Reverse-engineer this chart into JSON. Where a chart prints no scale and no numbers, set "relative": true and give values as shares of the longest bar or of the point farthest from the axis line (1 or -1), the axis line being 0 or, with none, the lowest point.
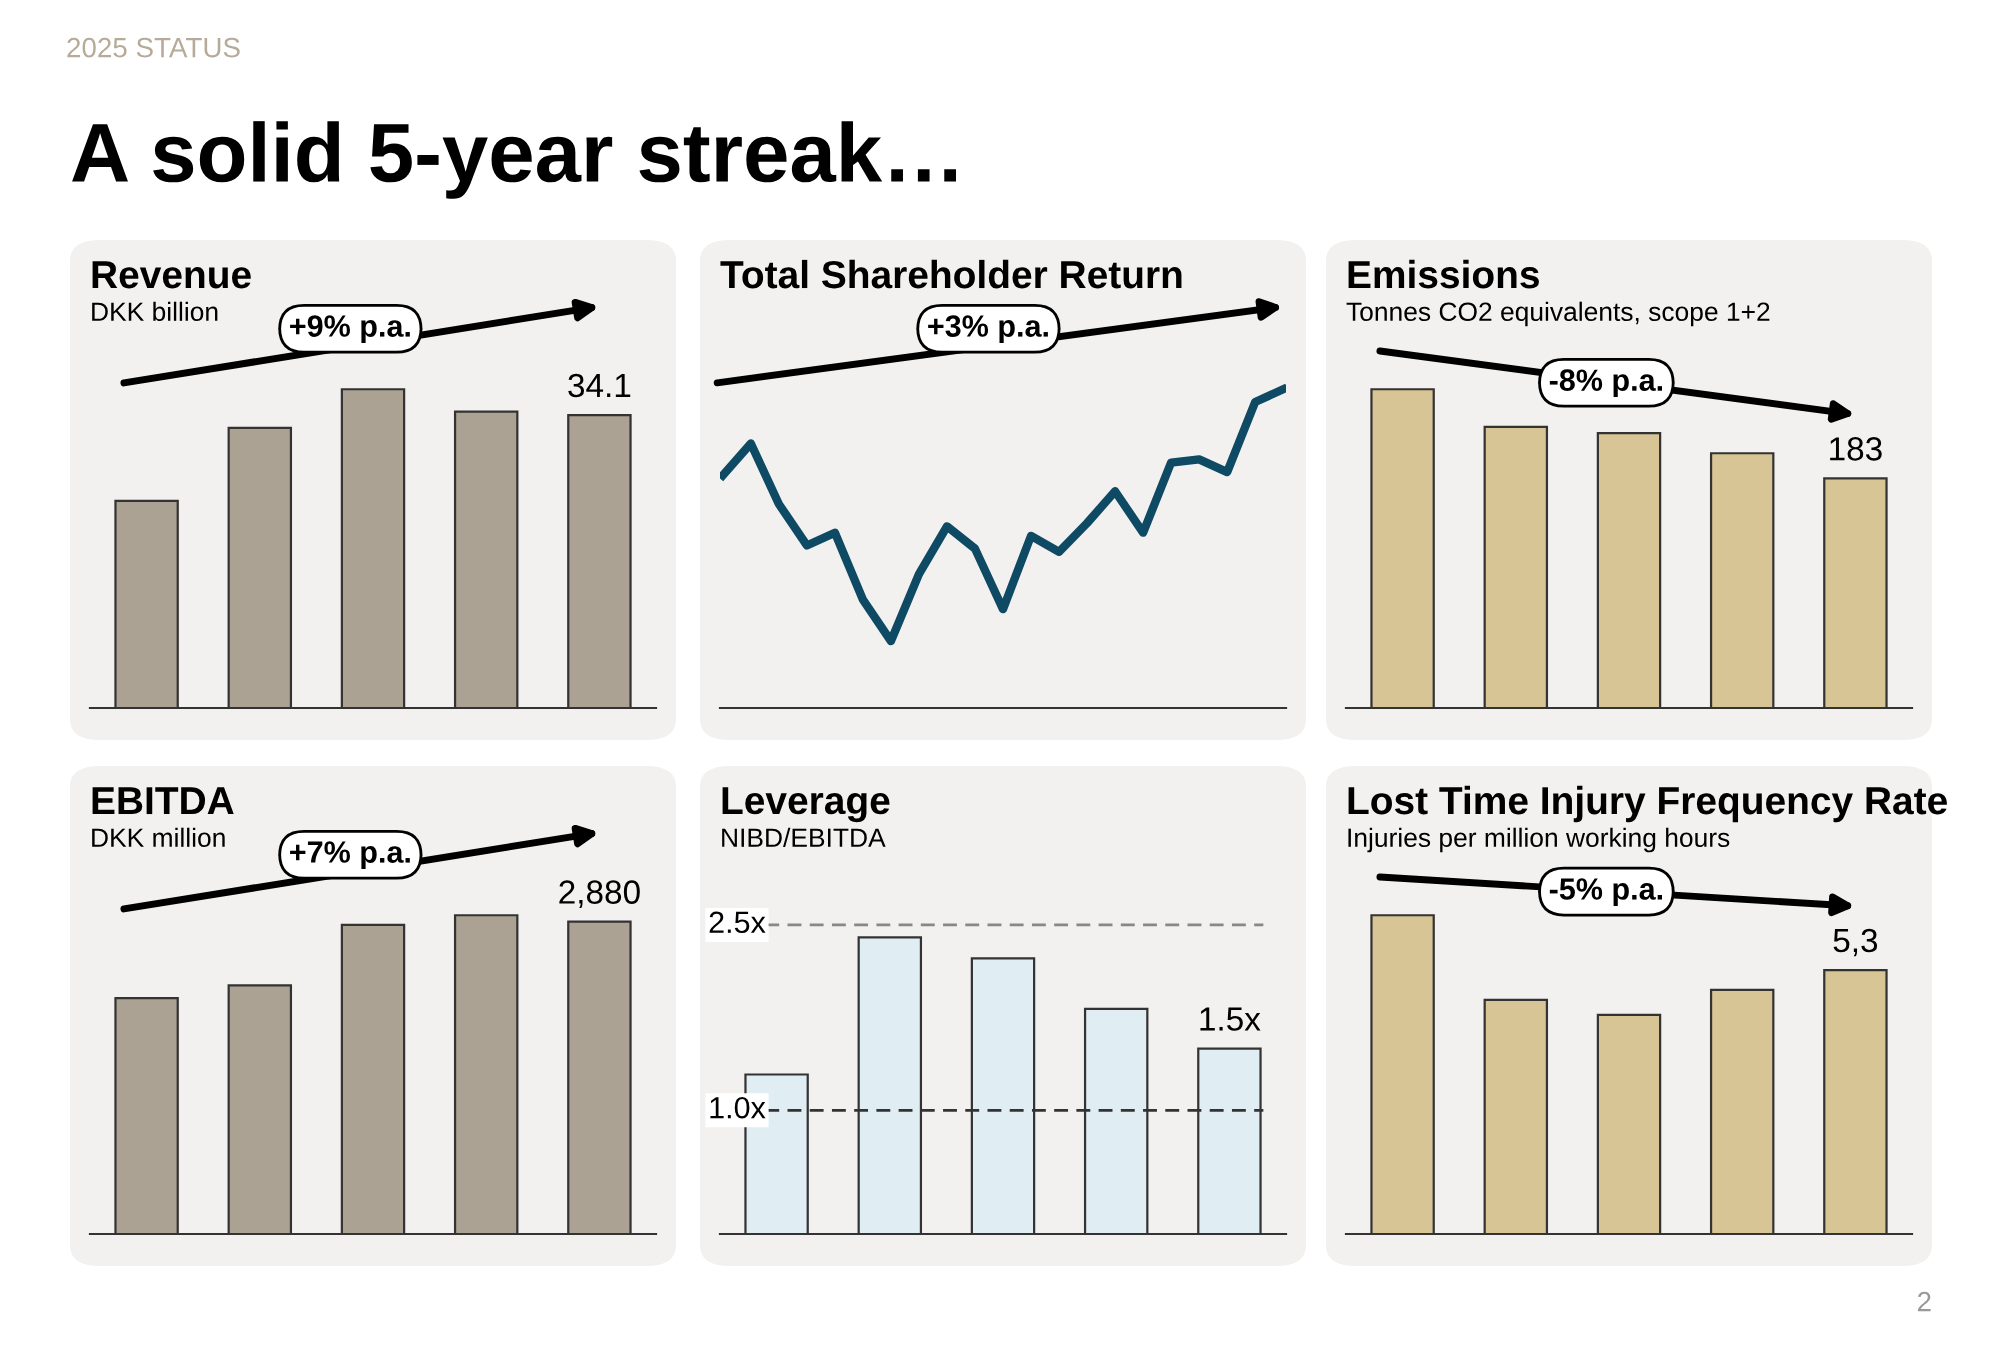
{
  "chart_data": [
    {
      "type": "other",
      "title": "A solid 5-year streak…",
      "annotations": [
        "2025 STATUS",
        "2"
      ]
    },
    {
      "type": "bar",
      "title": "Revenue",
      "subtitle": "DKK billion",
      "categories": [
        null,
        null,
        null,
        null,
        null
      ],
      "values": [
        24.1,
        32.6,
        37.1,
        34.5,
        34.1
      ],
      "color": "#aba293",
      "value_labels": [
        null,
        null,
        null,
        null,
        "34.1"
      ],
      "annotations": [
        "+9% p.a."
      ]
    },
    {
      "type": "line",
      "title": "Total Shareholder Return",
      "relative": true,
      "categories": [
        null,
        null,
        null,
        null,
        null,
        null,
        null,
        null,
        null,
        null,
        null,
        null,
        null,
        null,
        null,
        null,
        null,
        null,
        null,
        null,
        null
      ],
      "values": [
        0.73,
        0.83,
        0.64,
        0.51,
        0.55,
        0.34,
        0.21,
        0.42,
        0.57,
        0.5,
        0.31,
        0.54,
        0.49,
        0.58,
        0.68,
        0.55,
        0.77,
        0.78,
        0.74,
        0.96,
        1.0
      ],
      "color": "#0e4a63",
      "marker": "none",
      "line_style": "solid",
      "annotations": [
        "+3% p.a."
      ]
    },
    {
      "type": "bar",
      "title": "Emissions",
      "subtitle": "Tonnes CO2 equivalents, scope 1+2",
      "categories": [
        null,
        null,
        null,
        null,
        null
      ],
      "values": [
        254,
        224,
        219,
        203,
        183
      ],
      "color": "#d8c596",
      "value_labels": [
        null,
        null,
        null,
        null,
        "183"
      ],
      "annotations": [
        "-8% p.a."
      ]
    },
    {
      "type": "bar",
      "title": "EBITDA",
      "subtitle": "DKK million",
      "categories": [
        null,
        null,
        null,
        null,
        null
      ],
      "values": [
        2175,
        2292,
        2851,
        2939,
        2880
      ],
      "color": "#aba293",
      "value_labels": [
        null,
        null,
        null,
        null,
        "2,880"
      ],
      "annotations": [
        "+7% p.a."
      ]
    },
    {
      "type": "bar",
      "title": "Leverage",
      "subtitle": "NIBD/EBITDA",
      "categories": [
        null,
        null,
        null,
        null,
        null
      ],
      "values": [
        1.29,
        2.4,
        2.23,
        1.82,
        1.5
      ],
      "color": "#e0edf3",
      "value_labels": [
        null,
        null,
        null,
        null,
        "1.5x"
      ],
      "ref_lines": [
        {
          "axis": "y",
          "value": 2.5,
          "label": "2.5x",
          "color": "#888888",
          "line_style": "dashed"
        },
        {
          "axis": "y",
          "value": 1.0,
          "label": "1.0x",
          "color": "#333333",
          "line_style": "dashed"
        }
      ]
    },
    {
      "type": "bar",
      "title": "Lost Time Injury Frequency Rate",
      "subtitle": "Injuries per million working hours",
      "categories": [
        null,
        null,
        null,
        null,
        null
      ],
      "values": [
        6.4,
        4.7,
        4.4,
        4.9,
        5.3
      ],
      "color": "#d8c596",
      "value_labels": [
        null,
        null,
        null,
        null,
        "5,3"
      ],
      "annotations": [
        "-5% p.a."
      ]
    }
  ]
}
